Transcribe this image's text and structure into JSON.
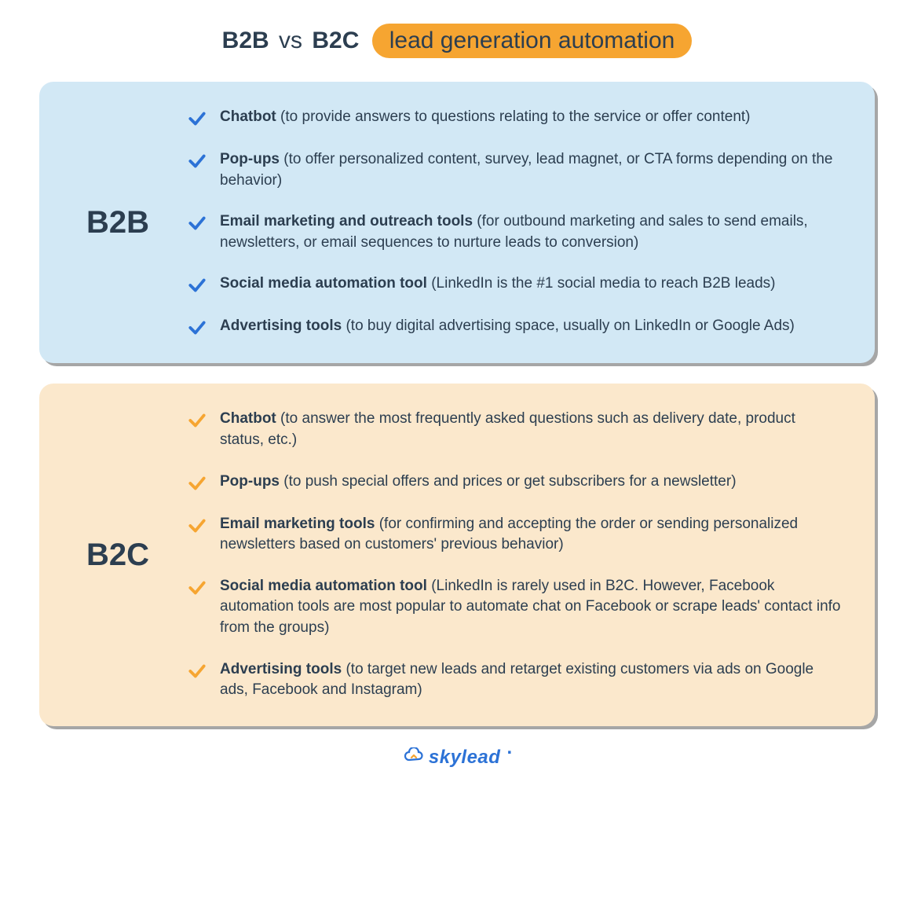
{
  "title": {
    "b2b": "B2B",
    "vs": "vs",
    "b2c": "B2C",
    "pill": "lead generation automation"
  },
  "colors": {
    "b2b_card_bg": "#d2e8f5",
    "b2b_check": "#2c72d6",
    "b2c_card_bg": "#fbe8cc",
    "b2c_check": "#f6a531",
    "text": "#2c3e50",
    "pill_bg": "#f6a531",
    "shadow": "rgba(0,0,0,0.35)",
    "logo": "#2c72d6"
  },
  "b2b": {
    "label": "B2B",
    "items": [
      {
        "bold": "Chatbot",
        "desc": " (to provide answers to questions relating to the service or offer content)"
      },
      {
        "bold": "Pop-ups",
        "desc": " (to offer personalized content, survey, lead magnet, or CTA forms depending on the behavior)"
      },
      {
        "bold": "Email marketing and outreach tools",
        "desc": " (for outbound marketing and sales to send emails, newsletters, or email sequences to nurture leads to conversion)"
      },
      {
        "bold": "Social media automation tool",
        "desc": " (LinkedIn is the #1 social media to reach B2B leads)"
      },
      {
        "bold": "Advertising tools",
        "desc": " (to buy digital advertising space, usually on LinkedIn or Google Ads)"
      }
    ]
  },
  "b2c": {
    "label": "B2C",
    "items": [
      {
        "bold": "Chatbot",
        "desc": " (to answer the most frequently asked questions such as delivery date, product status, etc.)"
      },
      {
        "bold": "Pop-ups",
        "desc": " (to push special offers and prices or get subscribers for a newsletter)"
      },
      {
        "bold": "Email marketing tools",
        "desc": " (for confirming and accepting the order or sending personalized newsletters based on customers' previous behavior)"
      },
      {
        "bold": "Social media automation tool",
        "desc": " (LinkedIn is rarely used in B2C. However, Facebook automation tools are most popular to automate chat on Facebook or scrape leads' contact info from the groups)"
      },
      {
        "bold": "Advertising tools",
        "desc": " (to target new leads and retarget existing customers via ads on Google ads, Facebook and Instagram)"
      }
    ]
  },
  "logo": {
    "text": "skylead",
    "dot": "."
  }
}
